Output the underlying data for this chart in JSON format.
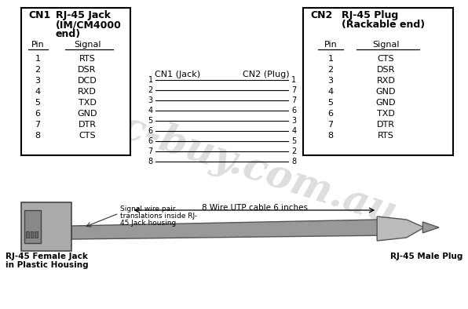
{
  "bg_color": "#ffffff",
  "watermark": "tec-buy.com.au",
  "cn1_title": "CN1",
  "cn1_header1": "RJ-45 Jack",
  "cn1_header2": "(IM/CM4000",
  "cn1_header3": "end)",
  "cn1_pin_header": "Pin",
  "cn1_signal_header": "Signal",
  "cn1_pins": [
    1,
    2,
    3,
    4,
    5,
    6,
    7,
    8
  ],
  "cn1_signals": [
    "RTS",
    "DSR",
    "DCD",
    "RXD",
    "TXD",
    "GND",
    "DTR",
    "CTS"
  ],
  "cn2_title": "CN2",
  "cn2_header1": "RJ-45 Plug",
  "cn2_header2": "(Rackable end)",
  "cn2_pin_header": "Pin",
  "cn2_signal_header": "Signal",
  "cn2_pins": [
    1,
    2,
    3,
    4,
    5,
    6,
    7,
    8
  ],
  "cn2_signals": [
    "CTS",
    "DSR",
    "RXD",
    "GND",
    "GND",
    "TXD",
    "DTR",
    "RTS"
  ],
  "wire_label_cn1": "CN1 (Jack)",
  "wire_label_cn2": "CN2 (Plug)",
  "wire_cn1_pins": [
    1,
    2,
    3,
    4,
    5,
    6,
    6,
    7,
    8
  ],
  "wire_cn2_pins": [
    1,
    7,
    7,
    6,
    3,
    4,
    5,
    2,
    8
  ],
  "bottom_label_left1": "RJ-45 Female Jack",
  "bottom_label_left2": "in Plastic Housing",
  "bottom_label_mid1": "Signal wire pair",
  "bottom_label_mid2": "translations inside RJ-",
  "bottom_label_mid3": "45 Jack housing",
  "bottom_label_cable": "8 Wire UTP cable 6 inches",
  "bottom_label_right": "RJ-45 Male Plug",
  "box_color": "#000000",
  "line_color": "#000000",
  "text_color": "#000000",
  "watermark_color": "#c8c8c8",
  "cable_color": "#999999",
  "cable_edge": "#555555",
  "jack_color": "#aaaaaa",
  "jack_edge": "#444444"
}
